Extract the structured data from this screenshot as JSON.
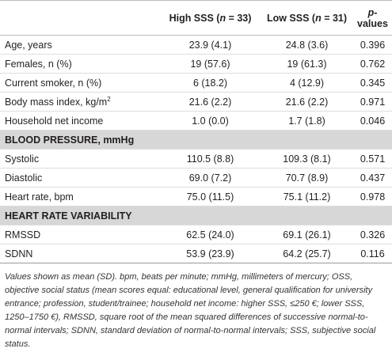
{
  "header": {
    "high": [
      "High SSS (",
      "n",
      " = 33)"
    ],
    "low": [
      "Low SSS (",
      "n",
      " = 31)"
    ],
    "p": [
      "p",
      "-values"
    ]
  },
  "groups": [
    {
      "rows": [
        [
          "Age, years",
          "23.9 (4.1)",
          "24.8 (3.6)",
          "0.396"
        ],
        [
          "Females, n (%)",
          "19 (57.6)",
          "19 (61.3)",
          "0.762"
        ],
        [
          "Current smoker, n (%)",
          "6 (18.2)",
          "4 (12.9)",
          "0.345"
        ],
        [
          [
            "Body mass index, kg/m",
            "2"
          ],
          "21.6 (2.2)",
          "21.6 (2.2)",
          "0.971"
        ],
        [
          "Household net income",
          "1.0 (0.0)",
          "1.7 (1.8)",
          "0.046"
        ]
      ]
    },
    {
      "title": "BLOOD PRESSURE, mmHg",
      "rows": [
        [
          "Systolic",
          "110.5 (8.8)",
          "109.3 (8.1)",
          "0.571"
        ],
        [
          "Diastolic",
          "69.0 (7.2)",
          "70.7 (8.9)",
          "0.437"
        ],
        [
          "Heart rate, bpm",
          "75.0 (11.5)",
          "75.1 (11.2)",
          "0.978"
        ]
      ]
    },
    {
      "title": "HEART RATE VARIABILITY",
      "rows": [
        [
          "RMSSD",
          "62.5 (24.0)",
          "69.1 (26.1)",
          "0.326"
        ],
        [
          "SDNN",
          "53.9 (23.9)",
          "64.2 (25.7)",
          "0.116"
        ]
      ]
    }
  ],
  "footnote": "Values shown as mean (SD). bpm, beats per minute; mmHg, millimeters of mercury; OSS, objective social status (mean scores equal: educational level, general qualification for university entrance; profession, student/trainee; household net income: higher SSS, ≤250 €; lower SSS, 1250–1750 €), RMSSD, square root of the mean squared differences of successive normal-to-normal intervals; SDNN, standard deviation of normal-to-normal intervals; SSS, subjective social status."
}
